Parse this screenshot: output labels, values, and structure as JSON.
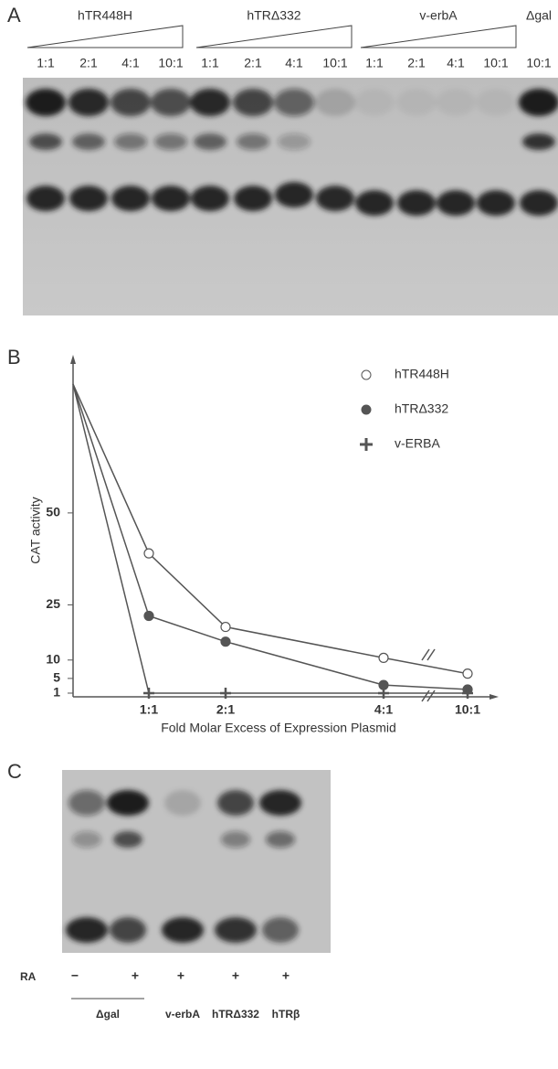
{
  "panel_a": {
    "label": "A",
    "groups": [
      "hTR448H",
      "hTRΔ332",
      "v-erbA",
      "Δgal"
    ],
    "lanes": [
      "1:1",
      "2:1",
      "4:1",
      "10:1",
      "1:1",
      "2:1",
      "4:1",
      "10:1",
      "1:1",
      "2:1",
      "4:1",
      "10:1",
      "10:1"
    ]
  },
  "chart_data": {
    "type": "line",
    "label": "B",
    "y_label": "CAT activity",
    "x_label": "Fold Molar Excess of Expression Plasmid",
    "categories": [
      null,
      "1:1",
      "2:1",
      "4:1",
      "10:1"
    ],
    "series": [
      {
        "name": "hTR448H",
        "color": "#555555",
        "marker": "open-circle",
        "values": [
          85,
          39,
          19,
          10.6,
          6.3
        ]
      },
      {
        "name": "hTRΔ332",
        "color": "#555555",
        "marker": "filled-circle",
        "values": [
          85,
          22,
          15,
          3.2,
          2
        ]
      },
      {
        "name": "v-ERBA",
        "color": "#555555",
        "marker": "plus",
        "values": [
          85,
          1,
          1,
          1,
          1
        ]
      }
    ],
    "ylim": [
      0,
      90
    ],
    "yticks": [
      1,
      5,
      10,
      25,
      50
    ]
  },
  "panel_c": {
    "label": "C",
    "row_label": "RA",
    "signs": [
      "−",
      "+",
      "+",
      "+",
      "+"
    ],
    "lanes": [
      "Δgal",
      "v-erbA",
      "hTRΔ332",
      "hTRβ"
    ]
  }
}
